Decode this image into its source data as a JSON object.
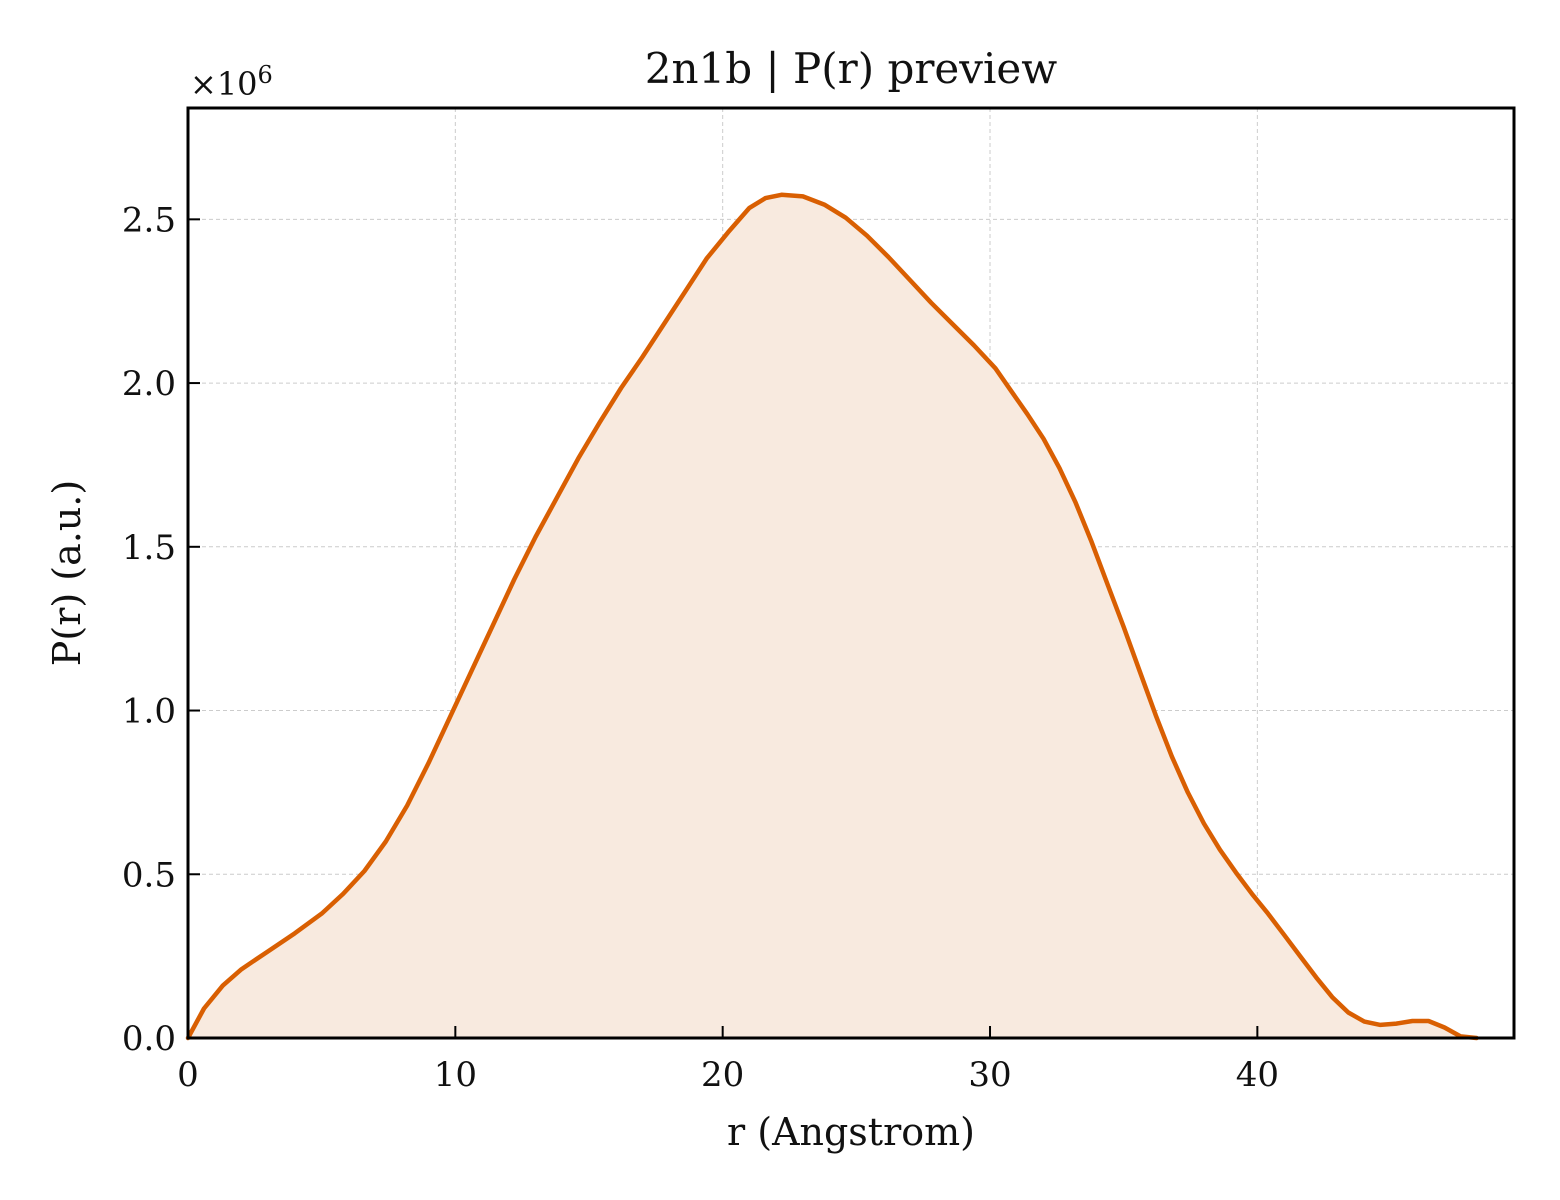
{
  "chart_data": {
    "type": "area",
    "title": "2n1b | P(r) preview",
    "xlabel": "r (Angstrom)",
    "ylabel": "P(r) (a.u.)",
    "y_multiplier": "×10",
    "y_multiplier_exponent": "6",
    "xlim": [
      0,
      49.6
    ],
    "ylim": [
      0,
      2.84
    ],
    "x_ticks": [
      0,
      10,
      20,
      30,
      40
    ],
    "x_tick_labels": [
      "0",
      "10",
      "20",
      "30",
      "40"
    ],
    "y_ticks": [
      0.0,
      0.5,
      1.0,
      1.5,
      2.0,
      2.5
    ],
    "y_tick_labels": [
      "0.0",
      "0.5",
      "1.0",
      "1.5",
      "2.0",
      "2.5"
    ],
    "grid": true,
    "line_color": "#d95f02",
    "fill_color": "#f8eadf",
    "series": [
      {
        "x": [
          0.0,
          0.6,
          1.3,
          2.0,
          3.0,
          4.0,
          5.0,
          5.8,
          6.6,
          7.4,
          8.2,
          9.0,
          9.8,
          10.6,
          11.4,
          12.2,
          13.0,
          13.8,
          14.6,
          15.4,
          16.2,
          17.0,
          17.8,
          18.6,
          19.4,
          20.2,
          21.0,
          21.6,
          22.2,
          23.0,
          23.8,
          24.6,
          25.4,
          26.2,
          27.0,
          27.8,
          28.6,
          29.4,
          30.2,
          30.8,
          31.4,
          32.0,
          32.6,
          33.2,
          33.8,
          34.4,
          35.0,
          35.6,
          36.2,
          36.8,
          37.4,
          38.0,
          38.6,
          39.2,
          39.8,
          40.4,
          41.0,
          41.6,
          42.2,
          42.8,
          43.4,
          44.0,
          44.6,
          45.2,
          45.8,
          46.4,
          47.0,
          47.6,
          48.2
        ],
        "y": [
          0.0,
          0.09,
          0.16,
          0.21,
          0.265,
          0.32,
          0.38,
          0.44,
          0.51,
          0.6,
          0.71,
          0.84,
          0.98,
          1.12,
          1.26,
          1.4,
          1.53,
          1.65,
          1.77,
          1.88,
          1.985,
          2.08,
          2.18,
          2.28,
          2.38,
          2.46,
          2.535,
          2.565,
          2.575,
          2.57,
          2.545,
          2.505,
          2.45,
          2.385,
          2.315,
          2.245,
          2.18,
          2.115,
          2.045,
          1.975,
          1.905,
          1.83,
          1.74,
          1.635,
          1.515,
          1.385,
          1.255,
          1.12,
          0.985,
          0.86,
          0.75,
          0.655,
          0.575,
          0.505,
          0.44,
          0.38,
          0.315,
          0.25,
          0.185,
          0.125,
          0.078,
          0.05,
          0.04,
          0.044,
          0.052,
          0.052,
          0.032,
          0.005,
          0.0
        ]
      }
    ]
  }
}
